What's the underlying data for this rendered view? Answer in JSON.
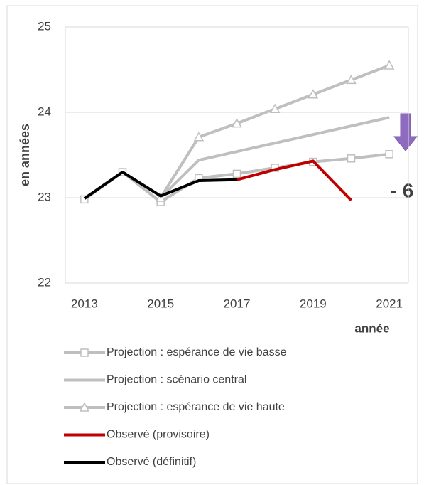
{
  "chart_data": {
    "type": "line",
    "x": [
      2013,
      2014,
      2015,
      2016,
      2017,
      2018,
      2019,
      2020,
      2021
    ],
    "xlim": [
      2012.5,
      2021.5
    ],
    "xticks": [
      2013,
      2015,
      2017,
      2019,
      2021
    ],
    "ylim": [
      22,
      25
    ],
    "yticks": [
      22,
      23,
      24,
      25
    ],
    "grid": true,
    "x_label": "année",
    "y_label": "en années",
    "annotation": {
      "text": "- 6",
      "color": "#c00000"
    },
    "series": [
      {
        "name": "Projection : espérance de vie basse",
        "color": "#bfbfbf",
        "marker": "square",
        "values": [
          22.98,
          23.3,
          22.95,
          23.23,
          23.28,
          23.35,
          23.42,
          23.46,
          23.51
        ]
      },
      {
        "name": "Projection : scénario central",
        "color": "#bfbfbf",
        "marker": "none",
        "values": [
          null,
          null,
          23.0,
          23.44,
          23.54,
          23.64,
          23.74,
          23.84,
          23.94
        ]
      },
      {
        "name": "Projection : espérance de vie haute",
        "color": "#bfbfbf",
        "marker": "triangle",
        "values": [
          null,
          null,
          23.0,
          23.71,
          23.87,
          24.04,
          24.21,
          24.38,
          24.55
        ]
      },
      {
        "name": "Observé (provisoire)",
        "color": "#c00000",
        "marker": "none",
        "values": [
          null,
          null,
          null,
          null,
          23.21,
          23.33,
          23.43,
          22.97,
          null
        ]
      },
      {
        "name": "Observé (définitif)",
        "color": "#000000",
        "marker": "none",
        "values": [
          22.99,
          23.3,
          23.02,
          23.2,
          23.21,
          null,
          null,
          null,
          null
        ]
      }
    ]
  }
}
